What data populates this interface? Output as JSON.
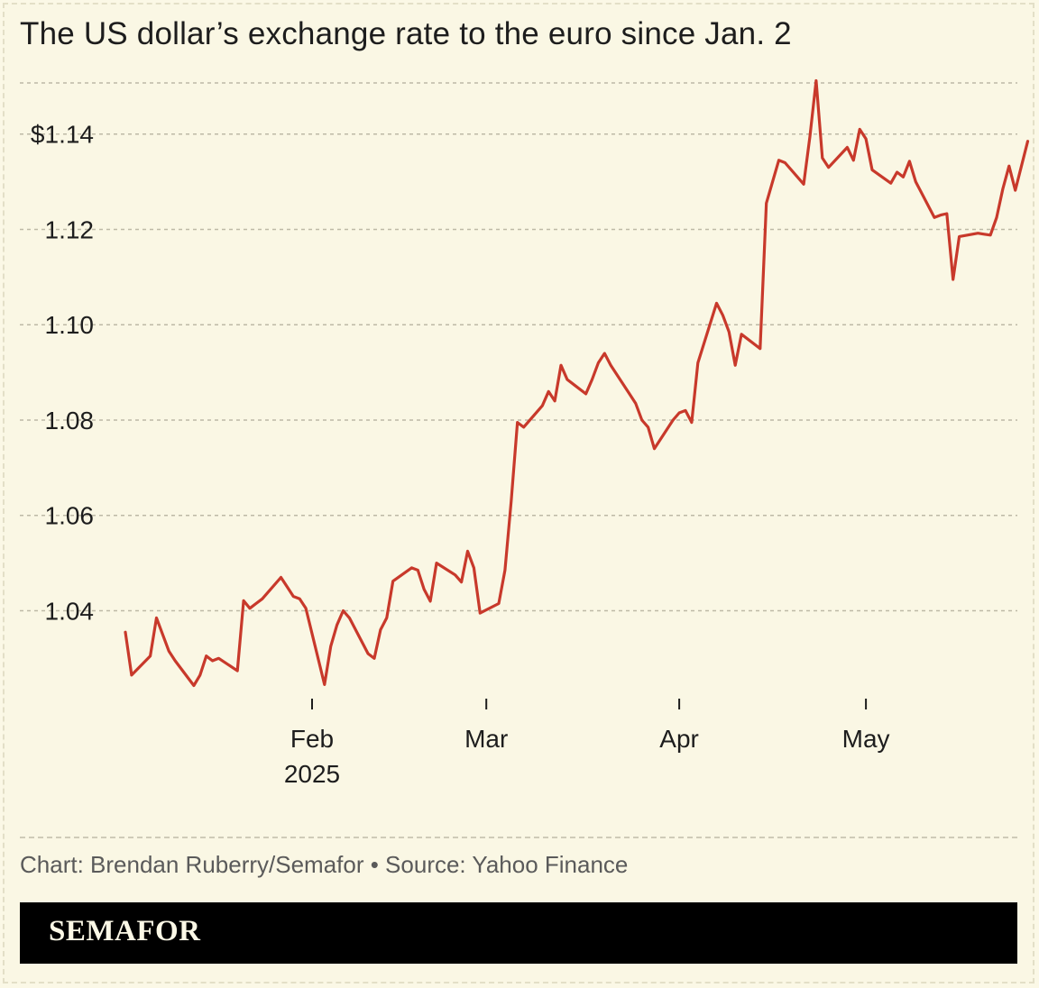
{
  "title": "The US dollar’s exchange rate to the euro since Jan. 2",
  "credit": "Chart: Brendan Ruberry/Semafor • Source: Yahoo Finance",
  "brand": "SEMAFOR",
  "colors": {
    "line": "#c8392b",
    "background": "#faf7e4",
    "grid": "#bdb9a6",
    "brandbar": "#000000"
  },
  "chart_data": {
    "type": "line",
    "title": "The US dollar’s exchange rate to the euro since Jan. 2",
    "xlabel": "",
    "ylabel": "",
    "ylim": [
      1.0225,
      1.153
    ],
    "xlim": [
      "2025-01-02",
      "2025-05-22"
    ],
    "grid": true,
    "yticks": [
      {
        "value": 1.04,
        "label": "1.04"
      },
      {
        "value": 1.06,
        "label": "1.06"
      },
      {
        "value": 1.08,
        "label": "1.08"
      },
      {
        "value": 1.1,
        "label": "1.10"
      },
      {
        "value": 1.12,
        "label": "1.12"
      },
      {
        "value": 1.14,
        "label": "$1.14"
      }
    ],
    "xticks": [
      {
        "date": "2025-02-01",
        "label": "Feb",
        "sublabel": "2025"
      },
      {
        "date": "2025-03-01",
        "label": "Mar",
        "sublabel": ""
      },
      {
        "date": "2025-04-01",
        "label": "Apr",
        "sublabel": ""
      },
      {
        "date": "2025-05-01",
        "label": "May",
        "sublabel": ""
      }
    ],
    "series": [
      {
        "points": [
          [
            "2025-01-02",
            1.0355
          ],
          [
            "2025-01-03",
            1.0265
          ],
          [
            "2025-01-06",
            1.0305
          ],
          [
            "2025-01-07",
            1.0385
          ],
          [
            "2025-01-08",
            1.035
          ],
          [
            "2025-01-09",
            1.0315
          ],
          [
            "2025-01-10",
            1.0295
          ],
          [
            "2025-01-13",
            1.0243
          ],
          [
            "2025-01-14",
            1.0265
          ],
          [
            "2025-01-15",
            1.0305
          ],
          [
            "2025-01-16",
            1.0295
          ],
          [
            "2025-01-17",
            1.03
          ],
          [
            "2025-01-20",
            1.0274
          ],
          [
            "2025-01-21",
            1.0421
          ],
          [
            "2025-01-22",
            1.0405
          ],
          [
            "2025-01-23",
            1.0415
          ],
          [
            "2025-01-24",
            1.0425
          ],
          [
            "2025-01-27",
            1.047
          ],
          [
            "2025-01-28",
            1.045
          ],
          [
            "2025-01-29",
            1.043
          ],
          [
            "2025-01-30",
            1.0425
          ],
          [
            "2025-01-31",
            1.0405
          ],
          [
            "2025-02-03",
            1.0245
          ],
          [
            "2025-02-04",
            1.0325
          ],
          [
            "2025-02-05",
            1.037
          ],
          [
            "2025-02-06",
            1.04
          ],
          [
            "2025-02-07",
            1.0385
          ],
          [
            "2025-02-10",
            1.031
          ],
          [
            "2025-02-11",
            1.03
          ],
          [
            "2025-02-12",
            1.036
          ],
          [
            "2025-02-13",
            1.0385
          ],
          [
            "2025-02-14",
            1.0462
          ],
          [
            "2025-02-17",
            1.049
          ],
          [
            "2025-02-18",
            1.0485
          ],
          [
            "2025-02-19",
            1.0445
          ],
          [
            "2025-02-20",
            1.042
          ],
          [
            "2025-02-21",
            1.05
          ],
          [
            "2025-02-24",
            1.0475
          ],
          [
            "2025-02-25",
            1.046
          ],
          [
            "2025-02-26",
            1.0525
          ],
          [
            "2025-02-27",
            1.049
          ],
          [
            "2025-02-28",
            1.0395
          ],
          [
            "2025-03-03",
            1.0415
          ],
          [
            "2025-03-04",
            1.0485
          ],
          [
            "2025-03-05",
            1.063
          ],
          [
            "2025-03-06",
            1.0795
          ],
          [
            "2025-03-07",
            1.0785
          ],
          [
            "2025-03-10",
            1.083
          ],
          [
            "2025-03-11",
            1.086
          ],
          [
            "2025-03-12",
            1.084
          ],
          [
            "2025-03-13",
            1.0915
          ],
          [
            "2025-03-14",
            1.0885
          ],
          [
            "2025-03-17",
            1.0855
          ],
          [
            "2025-03-18",
            1.0885
          ],
          [
            "2025-03-19",
            1.092
          ],
          [
            "2025-03-20",
            1.094
          ],
          [
            "2025-03-21",
            1.0915
          ],
          [
            "2025-03-24",
            1.0855
          ],
          [
            "2025-03-25",
            1.0835
          ],
          [
            "2025-03-26",
            1.08
          ],
          [
            "2025-03-27",
            1.0785
          ],
          [
            "2025-03-28",
            1.074
          ],
          [
            "2025-03-31",
            1.08
          ],
          [
            "2025-04-01",
            1.0815
          ],
          [
            "2025-04-02",
            1.082
          ],
          [
            "2025-04-03",
            1.0795
          ],
          [
            "2025-04-04",
            1.092
          ],
          [
            "2025-04-07",
            1.1045
          ],
          [
            "2025-04-08",
            1.102
          ],
          [
            "2025-04-09",
            1.0985
          ],
          [
            "2025-04-10",
            1.0915
          ],
          [
            "2025-04-11",
            1.098
          ],
          [
            "2025-04-14",
            1.095
          ],
          [
            "2025-04-15",
            1.1255
          ],
          [
            "2025-04-16",
            1.13
          ],
          [
            "2025-04-17",
            1.1345
          ],
          [
            "2025-04-18",
            1.134
          ],
          [
            "2025-04-21",
            1.1295
          ],
          [
            "2025-04-22",
            1.1395
          ],
          [
            "2025-04-23",
            1.1512
          ],
          [
            "2025-04-24",
            1.135
          ],
          [
            "2025-04-25",
            1.133
          ],
          [
            "2025-04-28",
            1.1372
          ],
          [
            "2025-04-29",
            1.1345
          ],
          [
            "2025-04-30",
            1.141
          ],
          [
            "2025-05-01",
            1.139
          ],
          [
            "2025-05-02",
            1.1325
          ],
          [
            "2025-05-05",
            1.1297
          ],
          [
            "2025-05-06",
            1.132
          ],
          [
            "2025-05-07",
            1.131
          ],
          [
            "2025-05-08",
            1.1343
          ],
          [
            "2025-05-09",
            1.13
          ],
          [
            "2025-05-12",
            1.1225
          ],
          [
            "2025-05-13",
            1.123
          ],
          [
            "2025-05-14",
            1.1233
          ],
          [
            "2025-05-15",
            1.1095
          ],
          [
            "2025-05-16",
            1.1185
          ],
          [
            "2025-05-19",
            1.1192
          ],
          [
            "2025-05-20",
            1.119
          ],
          [
            "2025-05-21",
            1.1188
          ],
          [
            "2025-05-22",
            1.1225
          ],
          [
            "2025-05-23",
            1.1285
          ],
          [
            "2025-05-24",
            1.1333
          ],
          [
            "2025-05-25",
            1.1282
          ],
          [
            "2025-05-27",
            1.1385
          ]
        ]
      }
    ]
  }
}
